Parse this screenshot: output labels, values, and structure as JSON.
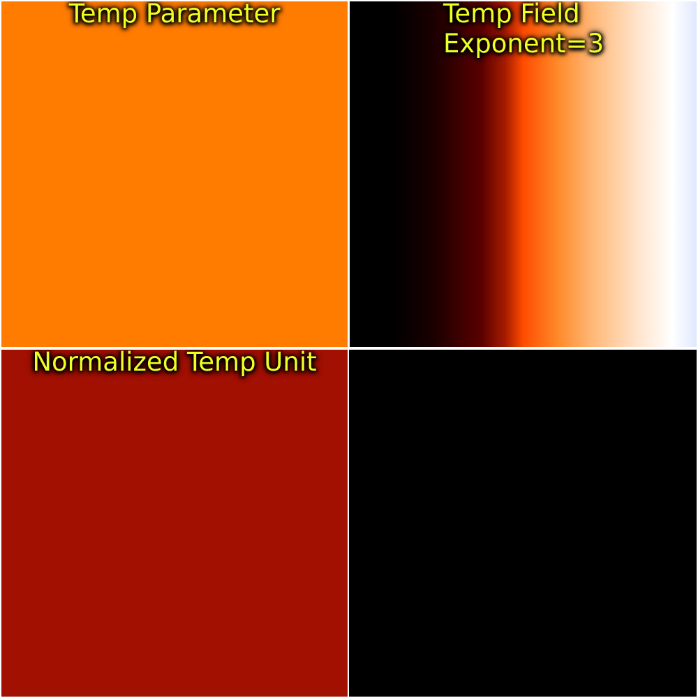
{
  "panels": [
    {
      "title_lines": [
        "Temp Parameter"
      ],
      "fill": "#ff7c00"
    },
    {
      "title_lines": [
        "Temp Field",
        "Exponent=3"
      ],
      "fill_gradient": [
        "#000000",
        "#000000",
        "#1a0000",
        "#5a0000",
        "#a81c00",
        "#ff4c00",
        "#ff8a2a",
        "#ffb877",
        "#ffe4cc",
        "#ffffff",
        "#e0e8ff"
      ]
    },
    {
      "title_lines": [
        "Normalized Temp Unit"
      ],
      "fill": "#a11000"
    },
    {
      "title_lines": [],
      "fill": "#000000"
    }
  ],
  "colors": {
    "label_text": "#eeff22",
    "divider": "#ffffff"
  }
}
